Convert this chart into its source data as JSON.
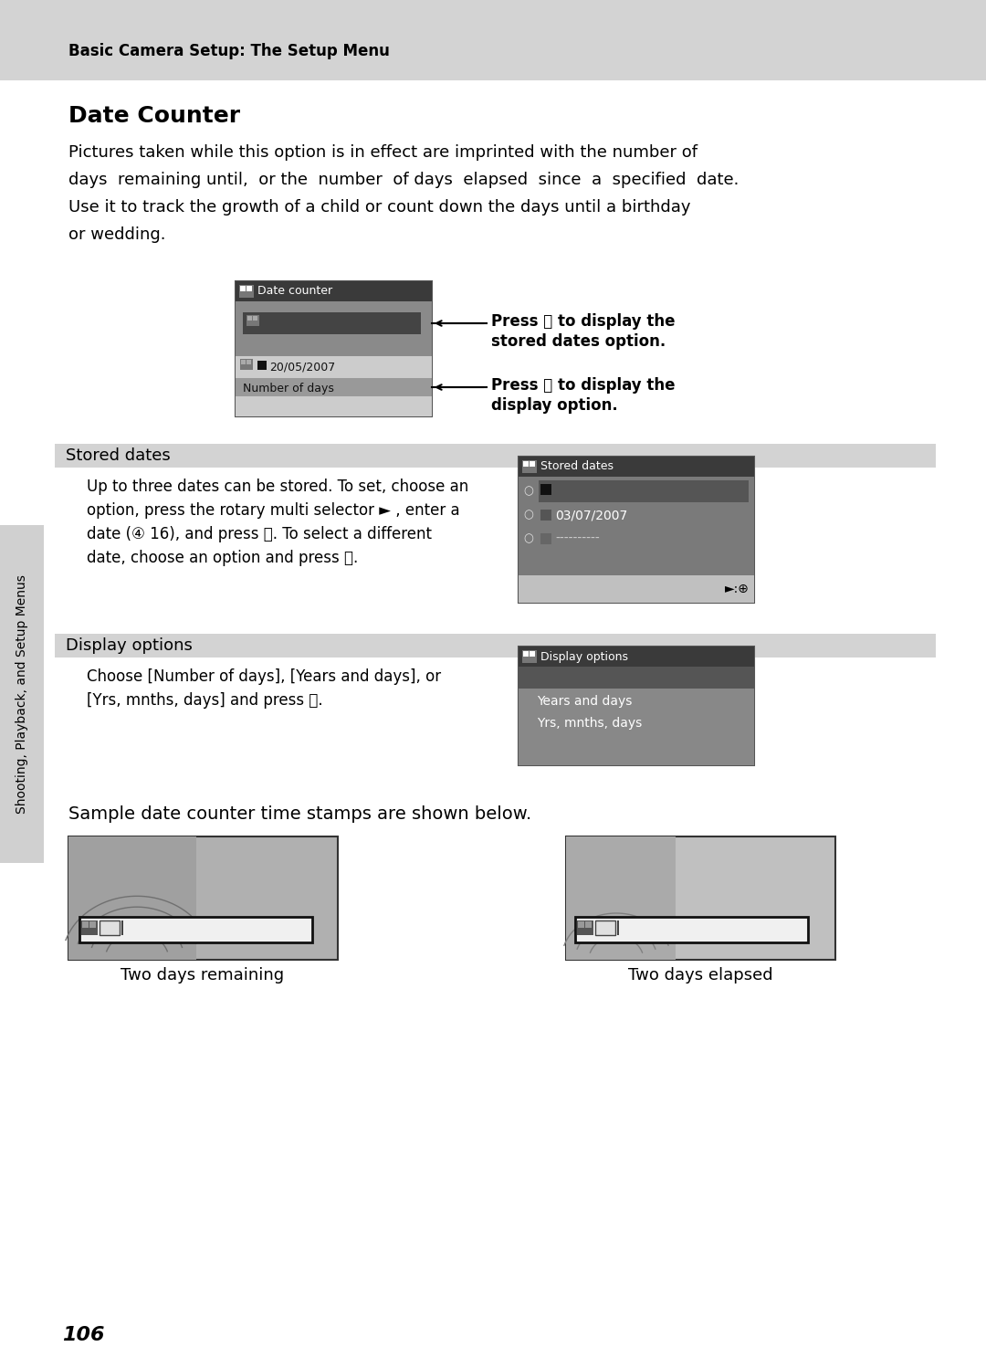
{
  "page_bg": "#ffffff",
  "header_bg": "#d3d3d3",
  "header_text": "Basic Camera Setup: The Setup Menu",
  "section_title": "Date Counter",
  "body_line1": "Pictures taken while this option is in effect are imprinted with the number of",
  "body_line2": "days  remaining until,  or the  number  of days  elapsed  since  a  specified  date.",
  "body_line3": "Use it to track the growth of a child or count down the days until a birthday",
  "body_line4": "or wedding.",
  "section_bar_bg": "#d3d3d3",
  "stored_dates_title": "Stored dates",
  "stored_dates_body_1": "Up to three dates can be stored. To set, choose an",
  "stored_dates_body_2": "option, press the rotary multi selector ► , enter a",
  "stored_dates_body_3": "date (④ 16), and press ⒪. To select a different",
  "stored_dates_body_4": "date, choose an option and press ⒪.",
  "display_options_title": "Display options",
  "display_options_body_1": "Choose [Number of days], [Years and days], or",
  "display_options_body_2": "[Yrs, mnths, days] and press ⒪.",
  "sample_text": "Sample date counter time stamps are shown below.",
  "caption_left": "Two days remaining",
  "caption_right": "Two days elapsed",
  "side_text": "Shooting, Playback, and Setup Menus",
  "page_number": "106",
  "press_ok_1": "Press ⒪ to display the\nstored dates option.",
  "press_ok_2": "Press ⒪ to display the\ndisplay option.",
  "white": "#ffffff",
  "black": "#000000"
}
